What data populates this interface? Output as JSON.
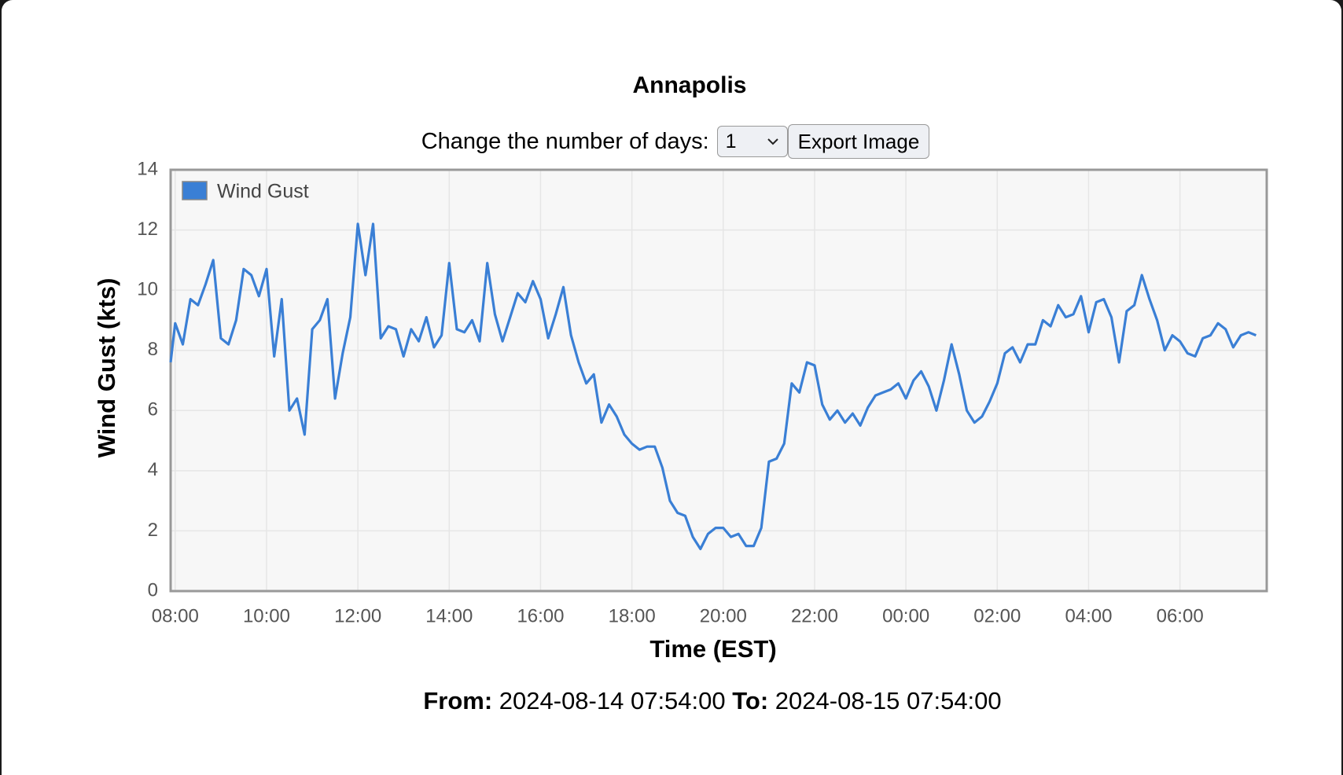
{
  "chart_data": {
    "type": "line",
    "title": "Annapolis",
    "x_label": "Time (EST)",
    "y_label": "Wind Gust (kts)",
    "x": [
      "2024-08-14 07:54",
      "2024-08-14 08:00",
      "2024-08-14 08:10",
      "2024-08-14 08:20",
      "2024-08-14 08:30",
      "2024-08-14 08:40",
      "2024-08-14 08:50",
      "2024-08-14 09:00",
      "2024-08-14 09:10",
      "2024-08-14 09:20",
      "2024-08-14 09:30",
      "2024-08-14 09:40",
      "2024-08-14 09:50",
      "2024-08-14 10:00",
      "2024-08-14 10:10",
      "2024-08-14 10:20",
      "2024-08-14 10:30",
      "2024-08-14 10:40",
      "2024-08-14 10:50",
      "2024-08-14 11:00",
      "2024-08-14 11:10",
      "2024-08-14 11:20",
      "2024-08-14 11:30",
      "2024-08-14 11:40",
      "2024-08-14 11:50",
      "2024-08-14 12:00",
      "2024-08-14 12:10",
      "2024-08-14 12:20",
      "2024-08-14 12:30",
      "2024-08-14 12:40",
      "2024-08-14 12:50",
      "2024-08-14 13:00",
      "2024-08-14 13:10",
      "2024-08-14 13:20",
      "2024-08-14 13:30",
      "2024-08-14 13:40",
      "2024-08-14 13:50",
      "2024-08-14 14:00",
      "2024-08-14 14:10",
      "2024-08-14 14:20",
      "2024-08-14 14:30",
      "2024-08-14 14:40",
      "2024-08-14 14:50",
      "2024-08-14 15:00",
      "2024-08-14 15:10",
      "2024-08-14 15:20",
      "2024-08-14 15:30",
      "2024-08-14 15:40",
      "2024-08-14 15:50",
      "2024-08-14 16:00",
      "2024-08-14 16:10",
      "2024-08-14 16:20",
      "2024-08-14 16:30",
      "2024-08-14 16:40",
      "2024-08-14 16:50",
      "2024-08-14 17:00",
      "2024-08-14 17:10",
      "2024-08-14 17:20",
      "2024-08-14 17:30",
      "2024-08-14 17:40",
      "2024-08-14 17:50",
      "2024-08-14 18:00",
      "2024-08-14 18:10",
      "2024-08-14 18:20",
      "2024-08-14 18:30",
      "2024-08-14 18:40",
      "2024-08-14 18:50",
      "2024-08-14 19:00",
      "2024-08-14 19:10",
      "2024-08-14 19:20",
      "2024-08-14 19:30",
      "2024-08-14 19:40",
      "2024-08-14 19:50",
      "2024-08-14 20:00",
      "2024-08-14 20:10",
      "2024-08-14 20:20",
      "2024-08-14 20:30",
      "2024-08-14 20:40",
      "2024-08-14 20:50",
      "2024-08-14 21:00",
      "2024-08-14 21:10",
      "2024-08-14 21:20",
      "2024-08-14 21:30",
      "2024-08-14 21:40",
      "2024-08-14 21:50",
      "2024-08-14 22:00",
      "2024-08-14 22:10",
      "2024-08-14 22:20",
      "2024-08-14 22:30",
      "2024-08-14 22:40",
      "2024-08-14 22:50",
      "2024-08-14 23:00",
      "2024-08-14 23:10",
      "2024-08-14 23:20",
      "2024-08-14 23:30",
      "2024-08-14 23:40",
      "2024-08-14 23:50",
      "2024-08-15 00:00",
      "2024-08-15 00:10",
      "2024-08-15 00:20",
      "2024-08-15 00:30",
      "2024-08-15 00:40",
      "2024-08-15 00:50",
      "2024-08-15 01:00",
      "2024-08-15 01:10",
      "2024-08-15 01:20",
      "2024-08-15 01:30",
      "2024-08-15 01:40",
      "2024-08-15 01:50",
      "2024-08-15 02:00",
      "2024-08-15 02:10",
      "2024-08-15 02:20",
      "2024-08-15 02:30",
      "2024-08-15 02:40",
      "2024-08-15 02:50",
      "2024-08-15 03:00",
      "2024-08-15 03:10",
      "2024-08-15 03:20",
      "2024-08-15 03:30",
      "2024-08-15 03:40",
      "2024-08-15 03:50",
      "2024-08-15 04:00",
      "2024-08-15 04:10",
      "2024-08-15 04:20",
      "2024-08-15 04:30",
      "2024-08-15 04:40",
      "2024-08-15 04:50",
      "2024-08-15 05:00",
      "2024-08-15 05:10",
      "2024-08-15 05:20",
      "2024-08-15 05:30",
      "2024-08-15 05:40",
      "2024-08-15 05:50",
      "2024-08-15 06:00",
      "2024-08-15 06:10",
      "2024-08-15 06:20",
      "2024-08-15 06:30",
      "2024-08-15 06:40",
      "2024-08-15 06:50",
      "2024-08-15 07:00",
      "2024-08-15 07:10",
      "2024-08-15 07:20",
      "2024-08-15 07:30",
      "2024-08-15 07:40"
    ],
    "series": [
      {
        "name": "Wind Gust",
        "color": "#3a7fd5",
        "values": [
          7.6,
          8.9,
          8.2,
          9.7,
          9.5,
          10.2,
          11.0,
          8.4,
          8.2,
          9.0,
          10.7,
          10.5,
          9.8,
          10.7,
          7.8,
          9.7,
          6.0,
          6.4,
          5.2,
          8.7,
          9.0,
          9.7,
          6.4,
          7.9,
          9.1,
          12.2,
          10.5,
          12.2,
          8.4,
          8.8,
          8.7,
          7.8,
          8.7,
          8.3,
          9.1,
          8.1,
          8.5,
          10.9,
          8.7,
          8.6,
          9.0,
          8.3,
          10.9,
          9.2,
          8.3,
          9.1,
          9.9,
          9.6,
          10.3,
          9.7,
          8.4,
          9.2,
          10.1,
          8.5,
          7.6,
          6.9,
          7.2,
          5.6,
          6.2,
          5.8,
          5.2,
          4.9,
          4.7,
          4.8,
          4.8,
          4.1,
          3.0,
          2.6,
          2.5,
          1.8,
          1.4,
          1.9,
          2.1,
          2.1,
          1.8,
          1.9,
          1.5,
          1.5,
          2.1,
          4.3,
          4.4,
          4.9,
          6.9,
          6.6,
          7.6,
          7.5,
          6.2,
          5.7,
          6.0,
          5.6,
          5.9,
          5.5,
          6.1,
          6.5,
          6.6,
          6.7,
          6.9,
          6.4,
          7.0,
          7.3,
          6.8,
          6.0,
          7.0,
          8.2,
          7.2,
          6.0,
          5.6,
          5.8,
          6.3,
          6.9,
          7.9,
          8.1,
          7.6,
          8.2,
          8.2,
          9.0,
          8.8,
          9.5,
          9.1,
          9.2,
          9.8,
          8.6,
          9.6,
          9.7,
          9.1,
          7.6,
          9.3,
          9.5,
          10.5,
          9.7,
          9.0,
          8.0,
          8.5,
          8.3,
          7.9,
          7.8,
          8.4,
          8.5,
          8.9,
          8.7,
          8.1,
          8.5,
          8.6,
          8.5
        ]
      }
    ],
    "xlim": [
      "2024-08-14 07:54",
      "2024-08-15 07:54"
    ],
    "xticks": [
      {
        "value": "2024-08-14 08:00",
        "label": "08:00"
      },
      {
        "value": "2024-08-14 10:00",
        "label": "10:00"
      },
      {
        "value": "2024-08-14 12:00",
        "label": "12:00"
      },
      {
        "value": "2024-08-14 14:00",
        "label": "14:00"
      },
      {
        "value": "2024-08-14 16:00",
        "label": "16:00"
      },
      {
        "value": "2024-08-14 18:00",
        "label": "18:00"
      },
      {
        "value": "2024-08-14 20:00",
        "label": "20:00"
      },
      {
        "value": "2024-08-14 22:00",
        "label": "22:00"
      },
      {
        "value": "2024-08-15 00:00",
        "label": "00:00"
      },
      {
        "value": "2024-08-15 02:00",
        "label": "02:00"
      },
      {
        "value": "2024-08-15 04:00",
        "label": "04:00"
      },
      {
        "value": "2024-08-15 06:00",
        "label": "06:00"
      }
    ],
    "ylim": [
      0,
      14
    ],
    "yticks": [
      0,
      2,
      4,
      6,
      8,
      10,
      12,
      14
    ],
    "grid": true,
    "legend": "top-left"
  },
  "controls": {
    "label": "Change the number of days:",
    "select_value": "1",
    "button": "Export Image"
  },
  "footer": {
    "from_label": "From:",
    "from": "2024-08-14 07:54:00",
    "to_label": "To:",
    "to": "2024-08-15 07:54:00"
  }
}
